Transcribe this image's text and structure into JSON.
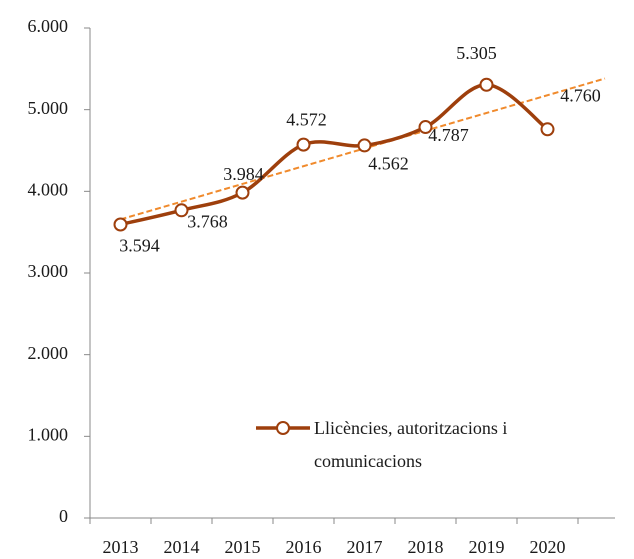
{
  "chart_data": {
    "type": "line",
    "categories": [
      "2013",
      "2014",
      "2015",
      "2016",
      "2017",
      "2018",
      "2019",
      "2020"
    ],
    "series": [
      {
        "name": "Llicències, autoritzacions i comunicacions",
        "color": "#9e3f0c",
        "values": [
          3594,
          3768,
          3984,
          4572,
          4562,
          4787,
          5305,
          4760
        ],
        "value_labels": [
          "3.594",
          "3.768",
          "3.984",
          "4.572",
          "4.562",
          "4.787",
          "5.305",
          "4.760"
        ]
      }
    ],
    "ylim": [
      0,
      6000
    ],
    "yticks": [
      0,
      {
        "value": 1000,
        "label": "1.000"
      },
      {
        "value": 2000,
        "label": "2.000"
      },
      {
        "value": 3000,
        "label": "3.000"
      },
      {
        "value": 4000,
        "label": "4.000"
      },
      {
        "value": 5000,
        "label": "5.000"
      },
      {
        "value": 6000,
        "label": "6.000"
      }
    ],
    "smooth": true,
    "trendline": true,
    "trendline_color": "#f08a2c",
    "grid": false
  }
}
